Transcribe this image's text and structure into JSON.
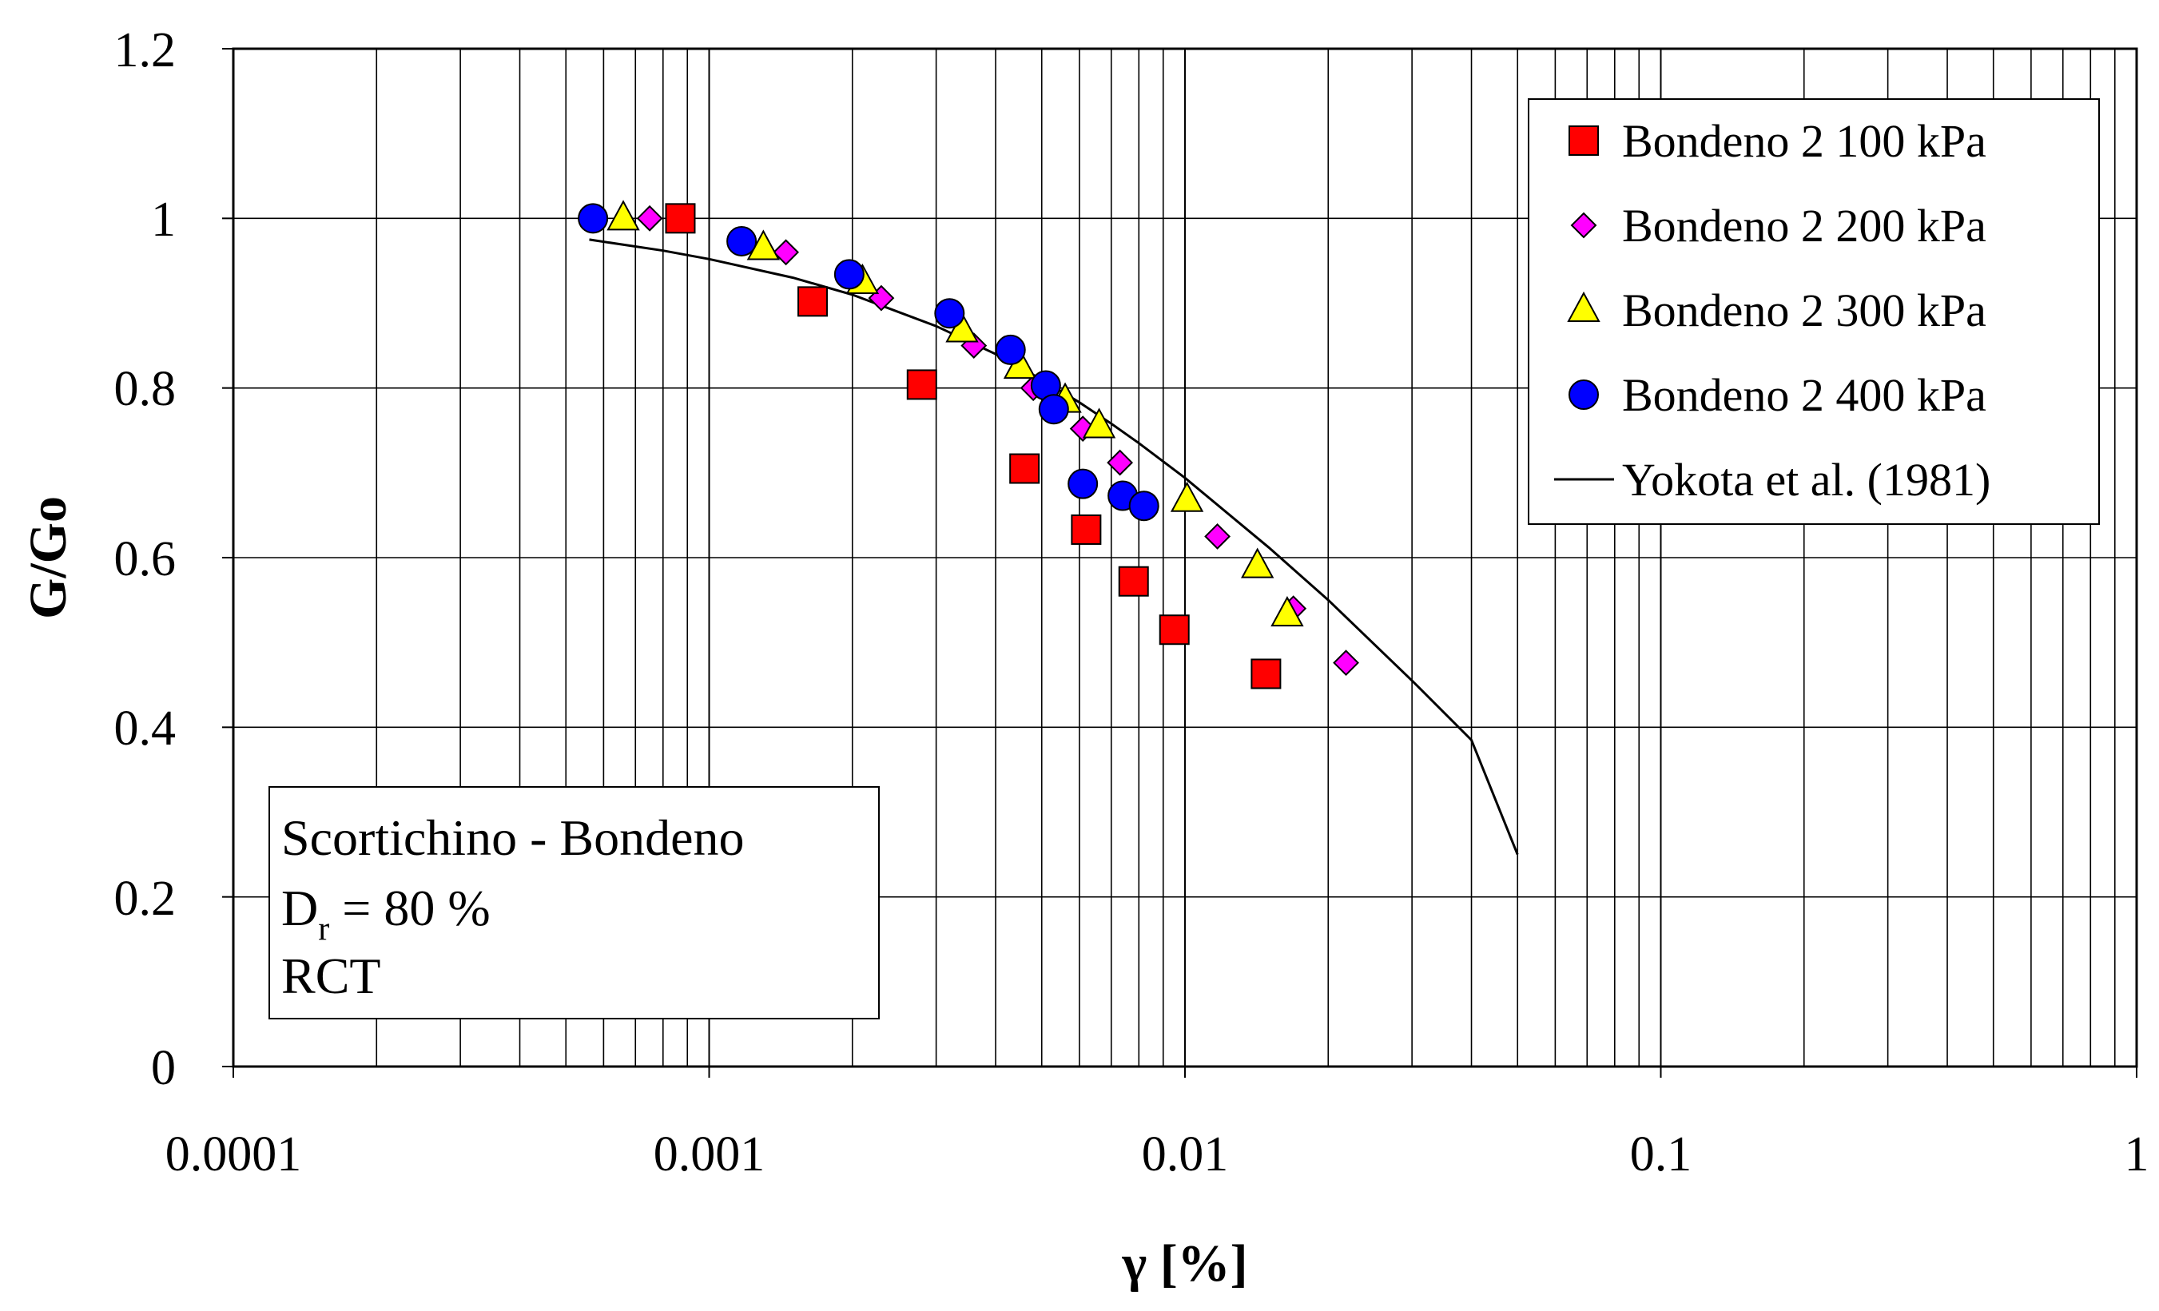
{
  "chart_data": {
    "type": "scatter",
    "title": "",
    "xlabel": "γ [%]",
    "ylabel": "G/Go",
    "xscale": "log",
    "xlim": [
      0.0001,
      1
    ],
    "ylim": [
      0,
      1.2
    ],
    "grid": true,
    "x_tick_labels": [
      "0.0001",
      "0.001",
      "0.01",
      "0.1",
      "1"
    ],
    "x_tick_values": [
      0.0001,
      0.001,
      0.01,
      0.1,
      1
    ],
    "y_tick_labels": [
      "0",
      "0.2",
      "0.4",
      "0.6",
      "0.8",
      "1",
      "1.2"
    ],
    "y_tick_values": [
      0,
      0.2,
      0.4,
      0.6,
      0.8,
      1,
      1.2
    ],
    "legend_position": "top-right",
    "series": [
      {
        "name": "Bondeno 2 100 kPa",
        "marker": "square",
        "color": "#ff0000",
        "points": [
          {
            "x": 0.00087,
            "y": 1.0
          },
          {
            "x": 0.00165,
            "y": 0.902
          },
          {
            "x": 0.0028,
            "y": 0.804
          },
          {
            "x": 0.0046,
            "y": 0.705
          },
          {
            "x": 0.0062,
            "y": 0.633
          },
          {
            "x": 0.0078,
            "y": 0.572
          },
          {
            "x": 0.0095,
            "y": 0.515
          },
          {
            "x": 0.0148,
            "y": 0.463
          }
        ]
      },
      {
        "name": "Bondeno 2 200 kPa",
        "marker": "diamond",
        "color": "#ff00ff",
        "points": [
          {
            "x": 0.00075,
            "y": 1.0
          },
          {
            "x": 0.00145,
            "y": 0.96
          },
          {
            "x": 0.0023,
            "y": 0.906
          },
          {
            "x": 0.0036,
            "y": 0.85
          },
          {
            "x": 0.0048,
            "y": 0.8
          },
          {
            "x": 0.0061,
            "y": 0.752
          },
          {
            "x": 0.0073,
            "y": 0.712
          },
          {
            "x": 0.0117,
            "y": 0.625
          },
          {
            "x": 0.0169,
            "y": 0.54
          },
          {
            "x": 0.0218,
            "y": 0.476
          }
        ]
      },
      {
        "name": "Bondeno 2 300 kPa",
        "marker": "triangle",
        "color": "#ffff00",
        "points": [
          {
            "x": 0.00066,
            "y": 1.0
          },
          {
            "x": 0.0013,
            "y": 0.965
          },
          {
            "x": 0.0021,
            "y": 0.925
          },
          {
            "x": 0.0034,
            "y": 0.868
          },
          {
            "x": 0.0045,
            "y": 0.825
          },
          {
            "x": 0.0056,
            "y": 0.785
          },
          {
            "x": 0.0066,
            "y": 0.755
          },
          {
            "x": 0.0101,
            "y": 0.668
          },
          {
            "x": 0.0142,
            "y": 0.59
          },
          {
            "x": 0.0164,
            "y": 0.533
          }
        ]
      },
      {
        "name": "Bondeno 2 400 kPa",
        "marker": "circle",
        "color": "#0000ff",
        "points": [
          {
            "x": 0.00057,
            "y": 1.0
          },
          {
            "x": 0.00117,
            "y": 0.973
          },
          {
            "x": 0.00197,
            "y": 0.934
          },
          {
            "x": 0.0032,
            "y": 0.888
          },
          {
            "x": 0.0043,
            "y": 0.845
          },
          {
            "x": 0.0051,
            "y": 0.803
          },
          {
            "x": 0.0053,
            "y": 0.775
          },
          {
            "x": 0.0061,
            "y": 0.687
          },
          {
            "x": 0.0074,
            "y": 0.673
          },
          {
            "x": 0.0082,
            "y": 0.661
          }
        ]
      },
      {
        "name": "Yokota et al. (1981)",
        "marker": "line",
        "color": "#000000",
        "points": [
          {
            "x": 0.00056,
            "y": 0.975
          },
          {
            "x": 0.0008,
            "y": 0.962
          },
          {
            "x": 0.001,
            "y": 0.952
          },
          {
            "x": 0.0015,
            "y": 0.93
          },
          {
            "x": 0.002,
            "y": 0.91
          },
          {
            "x": 0.003,
            "y": 0.873
          },
          {
            "x": 0.004,
            "y": 0.84
          },
          {
            "x": 0.005,
            "y": 0.81
          },
          {
            "x": 0.006,
            "y": 0.783
          },
          {
            "x": 0.007,
            "y": 0.758
          },
          {
            "x": 0.008,
            "y": 0.735
          },
          {
            "x": 0.01,
            "y": 0.694
          },
          {
            "x": 0.015,
            "y": 0.612
          },
          {
            "x": 0.02,
            "y": 0.55
          },
          {
            "x": 0.03,
            "y": 0.455
          },
          {
            "x": 0.04,
            "y": 0.385
          },
          {
            "x": 0.05,
            "y": 0.25
          }
        ]
      }
    ],
    "annotation": {
      "line1": "Scortichino - Bondeno",
      "line2_main": "D",
      "line2_sub": "r",
      "line2_rest": " = 80 %",
      "line3": "RCT"
    }
  }
}
